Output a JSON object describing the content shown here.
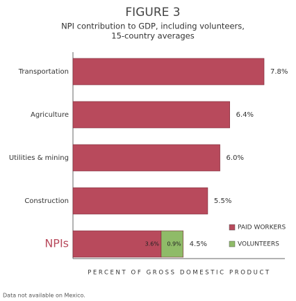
{
  "chart_data": {
    "type": "stacked-barh",
    "title": "FIGURE 3",
    "subtitle": [
      "NPI contribution to GDP, including volunteers,",
      "15-country averages"
    ],
    "categories": [
      "Transportation",
      "Agriculture",
      "Utilities & mining",
      "Construction",
      "NPIs"
    ],
    "series": [
      {
        "name": "PAID WORKERS",
        "color": "#b84a5c",
        "values": [
          7.8,
          6.4,
          6.0,
          5.5,
          3.6
        ],
        "value_labels": [
          null,
          null,
          null,
          null,
          "3.6%"
        ]
      },
      {
        "name": "VOLUNTEERS",
        "color": "#8fbb68",
        "values": [
          null,
          null,
          null,
          null,
          0.9
        ],
        "value_labels": [
          null,
          null,
          null,
          null,
          "0.9%"
        ]
      }
    ],
    "totals": [
      7.8,
      6.4,
      6.0,
      5.5,
      4.5
    ],
    "total_labels": [
      "7.8%",
      "6.4%",
      "6.0%",
      "5.5%",
      "4.5%"
    ],
    "xlabel": "PERCENT OF GROSS DOMESTIC PRODUCT",
    "xlim": [
      0,
      8.65
    ],
    "legend": "lower right",
    "footnote": "Data not available on Mexico."
  }
}
